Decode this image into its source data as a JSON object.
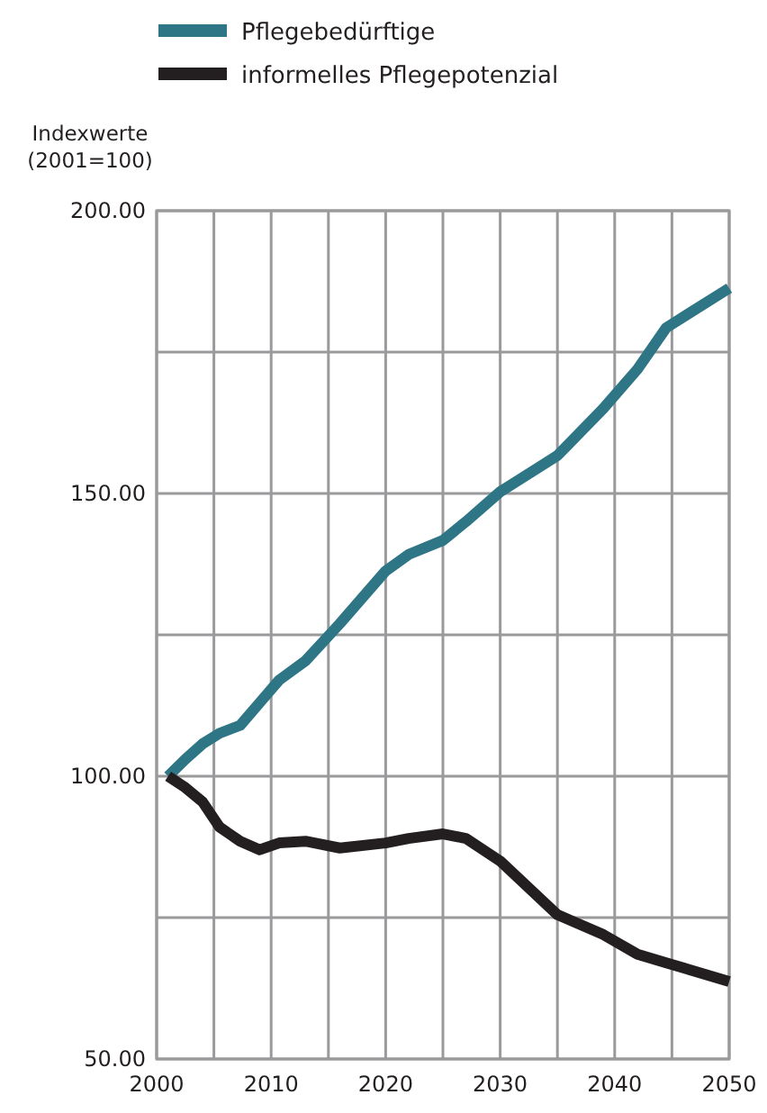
{
  "chart_data": {
    "type": "line",
    "ylabel": "Indexwerte\n(2001=100)",
    "x": [
      2001,
      2002.5,
      2004,
      2005.5,
      2007.3,
      2009,
      2010.7,
      2013,
      2016,
      2020,
      2022,
      2025,
      2027,
      2030,
      2035,
      2039,
      2042,
      2044.5,
      2050
    ],
    "series": [
      {
        "name": "Pflegebedürftige",
        "color": "#2e7685",
        "values": [
          100,
          103,
          105.7,
          107.6,
          109,
          113,
          117,
          120.4,
          127,
          136.3,
          139.2,
          141.7,
          145,
          150.3,
          156.7,
          165,
          172,
          179.3,
          186.3
        ]
      },
      {
        "name": "informelles Pflegepotenzial",
        "color": "#231f20",
        "values": [
          100,
          98,
          95.5,
          91,
          88.5,
          87,
          88.2,
          88.5,
          87.3,
          88.2,
          89,
          89.8,
          89,
          85,
          75.5,
          72,
          68.5,
          67,
          63.7
        ]
      }
    ],
    "xlim": [
      2000,
      2050
    ],
    "xticks": [
      2000,
      {
        "value": 2005,
        "label": null
      },
      2010,
      {
        "value": 2015,
        "label": null
      },
      2020,
      {
        "value": 2025,
        "label": null
      },
      2030,
      {
        "value": 2035,
        "label": null
      },
      2040,
      {
        "value": 2045,
        "label": null
      },
      2050
    ],
    "ylim": [
      50,
      200
    ],
    "yticks": [
      {
        "value": 50,
        "label": "50.00"
      },
      {
        "value": 75,
        "label": null
      },
      {
        "value": 100,
        "label": "100.00"
      },
      {
        "value": 125,
        "label": null
      },
      {
        "value": 150,
        "label": "150.00"
      },
      {
        "value": 175,
        "label": null
      },
      {
        "value": 200,
        "label": "200.00"
      }
    ],
    "grid": true,
    "legend": "top",
    "marker": "none",
    "line_style": "solid"
  }
}
